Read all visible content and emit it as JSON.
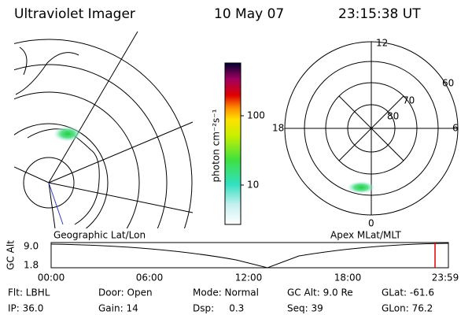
{
  "header": {
    "instrument": "Ultraviolet Imager",
    "date": "10 May 07",
    "time": "23:15:38 UT"
  },
  "colorbar": {
    "unit": "photon cm⁻²s⁻¹",
    "ticks": [
      "100",
      "10"
    ]
  },
  "left_map": {
    "label": "Geographic Lat/Lon"
  },
  "right_map": {
    "label": "Apex MLat/MLT",
    "mlt": [
      "12",
      "18",
      "6",
      "0"
    ],
    "lat": [
      "60",
      "70",
      "80"
    ]
  },
  "alt_plot": {
    "ylabel": "GC Alt",
    "yticks": [
      "9.0",
      "1.8"
    ],
    "xticks": [
      "00:00",
      "06:00",
      "12:00",
      "18:00",
      "23:59"
    ]
  },
  "footer": {
    "rows": [
      [
        "Flt: LBHL",
        "Door: Open",
        "Mode: Normal",
        "GC Alt: 9.0 Re",
        "GLat: -61.6"
      ],
      [
        "IP: 36.0",
        "Gain: 14",
        "Dsp:     0.3",
        "Seq: 39",
        "GLon: 76.2"
      ]
    ]
  }
}
